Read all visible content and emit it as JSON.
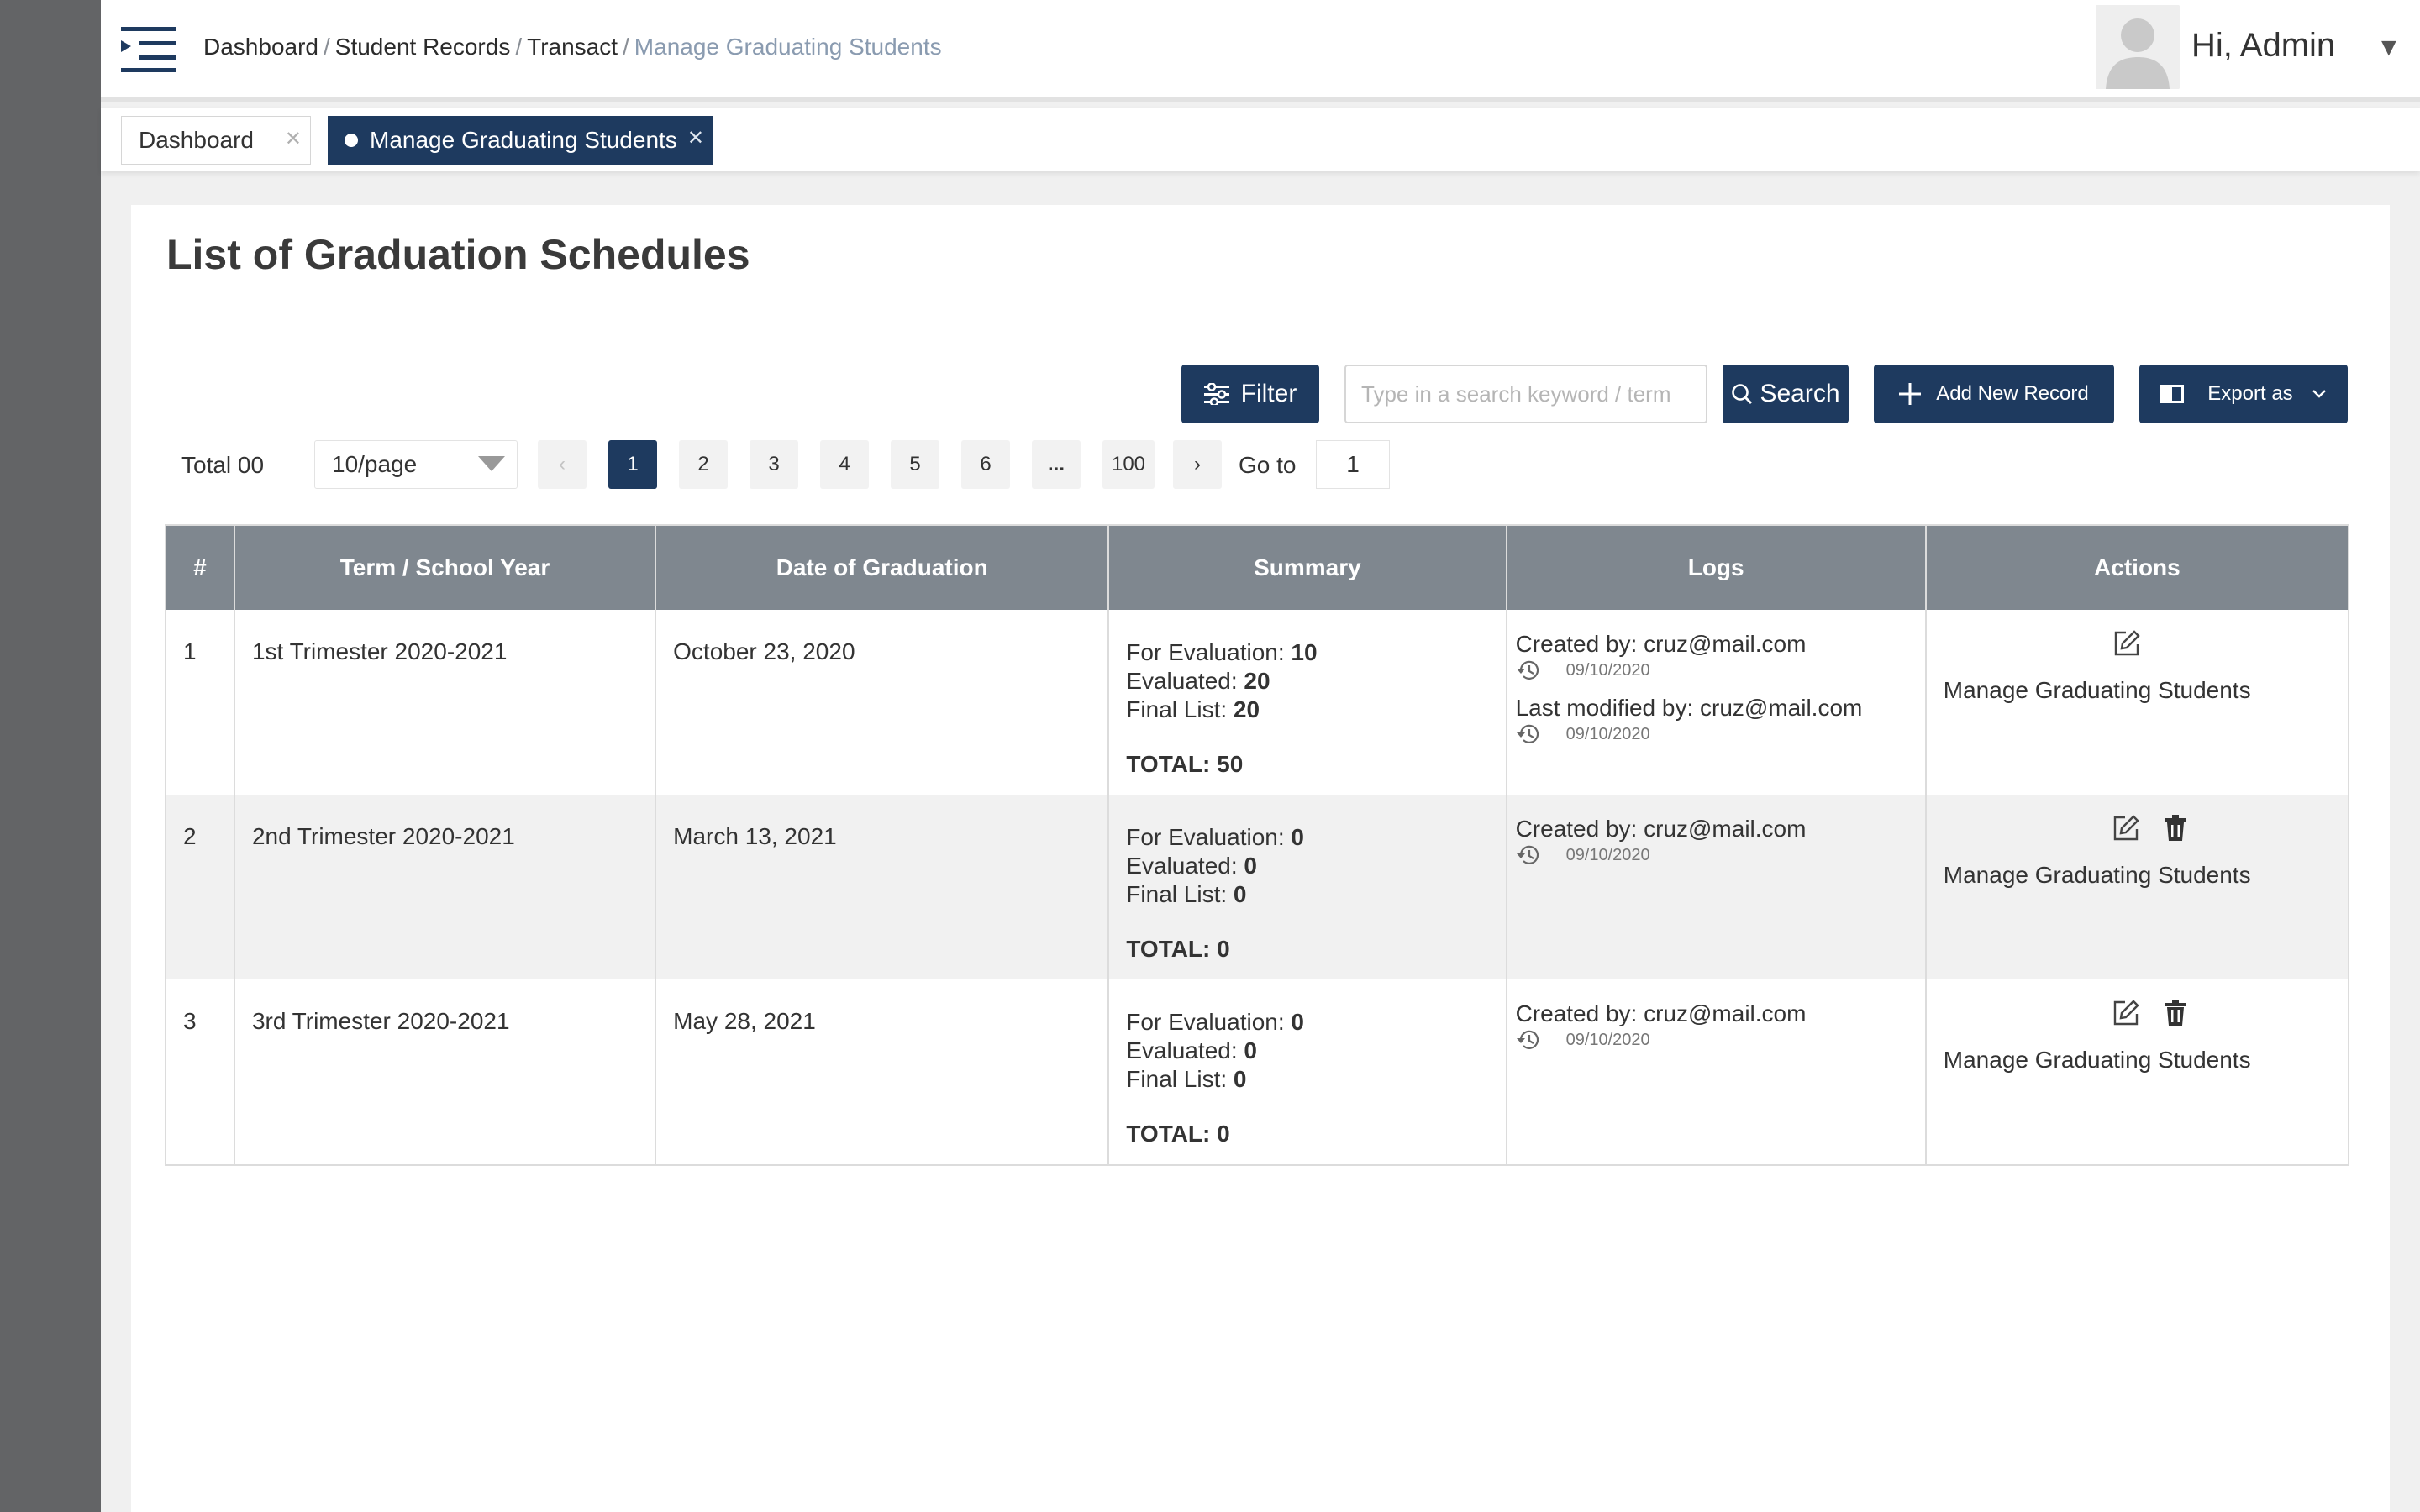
{
  "header": {
    "breadcrumb": [
      "Dashboard",
      "Student Records",
      "Transact"
    ],
    "breadcrumb_current": "Manage Graduating Students",
    "greeting": "Hi, Admin"
  },
  "tabs": [
    {
      "label": "Dashboard",
      "active": false
    },
    {
      "label": "Manage Graduating Students",
      "active": true
    }
  ],
  "page": {
    "title": "List of Graduation Schedules"
  },
  "toolbar": {
    "filter_label": "Filter",
    "search_placeholder": "Type in a search keyword / term",
    "search_label": "Search",
    "add_label": "Add New Record",
    "export_label": "Export as"
  },
  "pagination": {
    "total_label": "Total 00",
    "page_size": "10/page",
    "pages": [
      "1",
      "2",
      "3",
      "4",
      "5",
      "6",
      "...",
      "100"
    ],
    "current_page": "1",
    "goto_label": "Go to",
    "goto_value": "1"
  },
  "table": {
    "columns": [
      "#",
      "Term / School Year",
      "Date of Graduation",
      "Summary",
      "Logs",
      "Actions"
    ],
    "rows": [
      {
        "num": "1",
        "term": "1st Trimester 2020-2021",
        "date": "October 23, 2020",
        "for_eval_label": "For Evaluation:",
        "for_eval": "10",
        "evaluated_label": "Evaluated:",
        "evaluated": "20",
        "final_label": "Final List:",
        "final": "20",
        "total": "TOTAL: 50",
        "created": "Created by: cruz@mail.com",
        "created_date": "09/10/2020",
        "modified": "Last modified by: cruz@mail.com",
        "modified_date": "09/10/2020",
        "action": "Manage Graduating Students"
      },
      {
        "num": "2",
        "term": "2nd Trimester 2020-2021",
        "date": "March 13, 2021",
        "for_eval_label": "For Evaluation:",
        "for_eval": "0",
        "evaluated_label": "Evaluated:",
        "evaluated": "0",
        "final_label": "Final List:",
        "final": "0",
        "total": "TOTAL: 0",
        "created": "Created by: cruz@mail.com",
        "created_date": "09/10/2020",
        "action": "Manage Graduating Students"
      },
      {
        "num": "3",
        "term": "3rd Trimester 2020-2021",
        "date": "May 28, 2021",
        "for_eval_label": "For Evaluation:",
        "for_eval": "0",
        "evaluated_label": "Evaluated:",
        "evaluated": "0",
        "final_label": "Final List:",
        "final": "0",
        "total": "TOTAL: 0",
        "created": "Created by: cruz@mail.com",
        "created_date": "09/10/2020",
        "action": "Manage Graduating Students"
      }
    ]
  },
  "colors": {
    "primary": "#1e3a5f",
    "sidebar": "#636466",
    "table_header": "#7f878f",
    "row_alt": "#f1f1f1"
  },
  "icons": [
    "menu-icon",
    "avatar-icon",
    "caret-down-icon",
    "close-icon",
    "filter-icon",
    "search-icon",
    "plus-icon",
    "export-icon",
    "chevron-down-icon",
    "chevron-left-icon",
    "chevron-right-icon",
    "history-icon",
    "edit-icon",
    "trash-icon"
  ]
}
